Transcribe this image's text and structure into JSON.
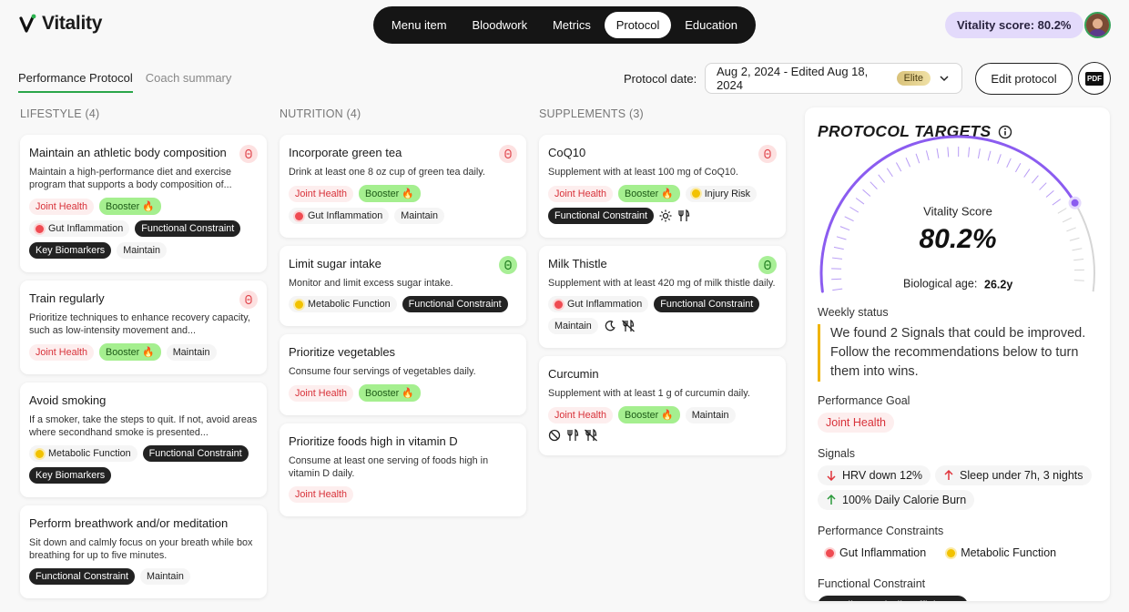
{
  "header": {
    "logo": "Vitality",
    "nav": {
      "items": [
        "Menu item",
        "Bloodwork",
        "Metrics",
        "Protocol",
        "Education"
      ],
      "active_index": 3
    },
    "score": "Vitality score: 80.2%"
  },
  "toolbar": {
    "tabs": [
      "Performance Protocol",
      "Coach summary"
    ],
    "active_tab": 0,
    "date_label": "Protocol date:",
    "date_value": "Aug 2, 2024 - Edited Aug 18, 2024",
    "badge": "Elite",
    "edit_button": "Edit protocol",
    "pdf_button": "PDF"
  },
  "columns": [
    {
      "title": "LIFESTYLE (4)",
      "cards": [
        {
          "title": "Maintain an athletic body composition",
          "description": "Maintain a high-performance diet and exercise program that supports a body composition of...",
          "status": "red",
          "tag_rows": [
            [
              {
                "label": "Joint Health",
                "style": "red"
              },
              {
                "label": "Booster 🔥",
                "style": "green"
              }
            ],
            [
              {
                "label": "Gut Inflammation",
                "style": "dot-red"
              },
              {
                "label": "Functional Constraint",
                "style": "dark"
              }
            ],
            [
              {
                "label": "Key Biomarkers",
                "style": "dark"
              },
              {
                "label": "Maintain",
                "style": "plain"
              }
            ]
          ]
        },
        {
          "title": "Train regularly",
          "description": "Prioritize techniques to enhance recovery capacity, such as low-intensity movement and...",
          "status": "red",
          "tag_rows": [
            [
              {
                "label": "Joint Health",
                "style": "red"
              },
              {
                "label": "Booster 🔥",
                "style": "green"
              },
              {
                "label": "Maintain",
                "style": "plain"
              }
            ]
          ]
        },
        {
          "title": "Avoid smoking",
          "description": "If a smoker, take the steps to quit. If not, avoid areas where secondhand smoke is presented...",
          "tag_rows": [
            [
              {
                "label": "Metabolic Function",
                "style": "dot-yellow"
              },
              {
                "label": "Functional Constraint",
                "style": "dark"
              }
            ],
            [
              {
                "label": "Key Biomarkers",
                "style": "dark"
              }
            ]
          ]
        },
        {
          "title": "Perform breathwork and/or meditation",
          "description": "Sit down and calmly focus on your breath while box breathing for up to five minutes.",
          "tag_rows": [
            [
              {
                "label": "Functional Constraint",
                "style": "dark"
              },
              {
                "label": "Maintain",
                "style": "plain"
              }
            ]
          ]
        }
      ]
    },
    {
      "title": "NUTRITION (4)",
      "cards": [
        {
          "title": "Incorporate green tea",
          "description": "Drink at least one 8 oz cup of green tea daily.",
          "status": "red",
          "tag_rows": [
            [
              {
                "label": "Joint Health",
                "style": "red"
              },
              {
                "label": "Booster 🔥",
                "style": "green"
              }
            ],
            [
              {
                "label": "Gut Inflammation",
                "style": "dot-red"
              },
              {
                "label": "Maintain",
                "style": "plain"
              }
            ]
          ]
        },
        {
          "title": "Limit sugar intake",
          "description": "Monitor and limit excess sugar intake.",
          "status": "green",
          "tag_rows": [
            [
              {
                "label": "Metabolic Function",
                "style": "dot-yellow"
              },
              {
                "label": "Functional Constraint",
                "style": "dark"
              }
            ]
          ]
        },
        {
          "title": "Prioritize vegetables",
          "description": "Consume four servings of vegetables daily.",
          "tag_rows": [
            [
              {
                "label": "Joint Health",
                "style": "red"
              },
              {
                "label": "Booster 🔥",
                "style": "green"
              }
            ]
          ]
        },
        {
          "title": "Prioritize foods high in vitamin D",
          "description": "Consume at least one serving of foods high in vitamin D daily.",
          "tag_rows": [
            [
              {
                "label": "Joint Health",
                "style": "red"
              }
            ]
          ]
        }
      ]
    },
    {
      "title": "SUPPLEMENTS (3)",
      "cards": [
        {
          "title": "CoQ10",
          "description": "Supplement with at least 100 mg of CoQ10.",
          "status": "red",
          "tag_rows": [
            [
              {
                "label": "Joint Health",
                "style": "red"
              },
              {
                "label": "Booster 🔥",
                "style": "green"
              },
              {
                "label": "Injury Risk",
                "style": "dot-yellow"
              }
            ],
            [
              {
                "label": "Functional Constraint",
                "style": "dark"
              },
              {
                "icon": "sun"
              },
              {
                "icon": "fork"
              }
            ]
          ]
        },
        {
          "title": "Milk Thistle",
          "description": "Supplement with at least 420 mg of milk thistle daily.",
          "status": "green",
          "tag_rows": [
            [
              {
                "label": "Gut Inflammation",
                "style": "dot-red"
              },
              {
                "label": "Functional Constraint",
                "style": "dark"
              }
            ],
            [
              {
                "label": "Maintain",
                "style": "plain"
              },
              {
                "icon": "moon"
              },
              {
                "icon": "fork-x"
              }
            ]
          ]
        },
        {
          "title": "Curcumin",
          "description": "Supplement with at least 1 g of curcumin daily.",
          "tag_rows": [
            [
              {
                "label": "Joint Health",
                "style": "red"
              },
              {
                "label": "Booster 🔥",
                "style": "green"
              },
              {
                "label": "Maintain",
                "style": "plain"
              }
            ],
            [
              {
                "icon": "no"
              },
              {
                "icon": "fork"
              },
              {
                "icon": "fork-x"
              }
            ]
          ]
        }
      ]
    }
  ],
  "targets": {
    "title": "PROTOCOL TARGETS",
    "gauge": {
      "label": "Vitality Score",
      "value": 80.2,
      "value_label": "80.2%",
      "age_label": "Biological age:",
      "age_value": "26.2y"
    },
    "weekly_title": "Weekly status",
    "weekly_text": "We found 2 Signals that could be improved. Follow the recommendations below to turn them into wins.",
    "goal_title": "Performance Goal",
    "goal": "Joint Health",
    "signals_title": "Signals",
    "signals": [
      {
        "label": "HRV down 12%",
        "arrow": "down-red"
      },
      {
        "label": "Sleep under 7h, 3 nights",
        "arrow": "up-red"
      },
      {
        "label": "100% Daily Calorie Burn",
        "arrow": "up-green"
      }
    ],
    "constraints_title": "Performance Constraints",
    "constraints": [
      {
        "label": "Gut Inflammation",
        "style": "dot-red"
      },
      {
        "label": "Metabolic Function",
        "style": "dot-yellow"
      }
    ],
    "functional_title": "Functional Constraint",
    "functional": "Cardiometabolic Efficiency"
  }
}
